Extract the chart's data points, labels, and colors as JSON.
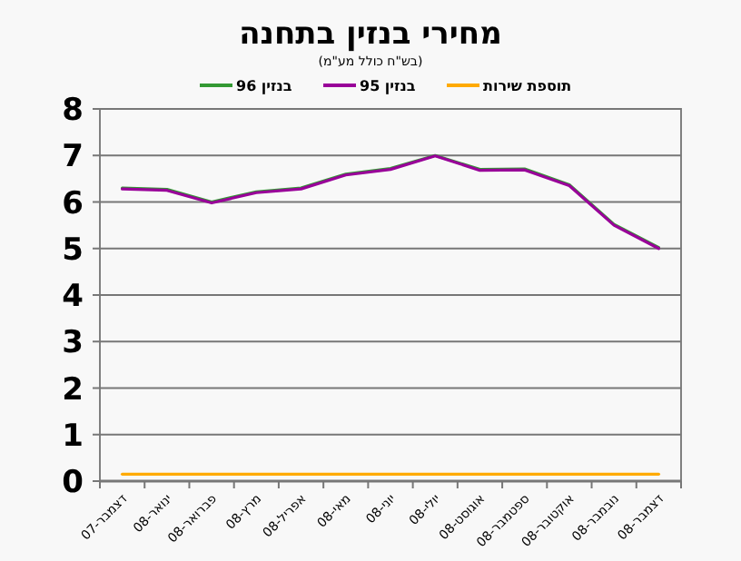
{
  "chart_data": {
    "type": "line",
    "title": "מחירי בנזין בתחנה",
    "subtitle": "(בש\"ח כולל מע\"מ)",
    "categories": [
      "דצמבר-07",
      "ינואר-08",
      "פברואר-08",
      "מרץ-08",
      "אפריל-08",
      "מאי-08",
      "יוני-08",
      "יולי-08",
      "אוגוסט-08",
      "ספטמבר-08",
      "אוקטובר-08",
      "נובמבר-08",
      "דצמבר-08"
    ],
    "series": [
      {
        "name": "בנזין 96",
        "color": "#339933",
        "values": [
          6.3,
          6.27,
          6.0,
          6.22,
          6.3,
          6.6,
          6.72,
          7.0,
          6.7,
          6.71,
          6.37,
          5.52,
          5.02
        ]
      },
      {
        "name": "בנזין 95",
        "color": "#990099",
        "values": [
          6.28,
          6.25,
          5.98,
          6.2,
          6.28,
          6.58,
          6.7,
          6.99,
          6.68,
          6.69,
          6.35,
          5.5,
          5.0
        ]
      },
      {
        "name": "תוספת שירות",
        "color": "#ffaa00",
        "values": [
          0.15,
          0.15,
          0.15,
          0.15,
          0.15,
          0.15,
          0.15,
          0.15,
          0.15,
          0.15,
          0.15,
          0.15,
          0.15
        ]
      }
    ],
    "ylim": [
      0,
      8
    ],
    "yticks": [
      0,
      1,
      2,
      3,
      4,
      5,
      6,
      7,
      8
    ],
    "grid": "y",
    "legend": "top",
    "marker": "none",
    "line_style": "solid"
  }
}
